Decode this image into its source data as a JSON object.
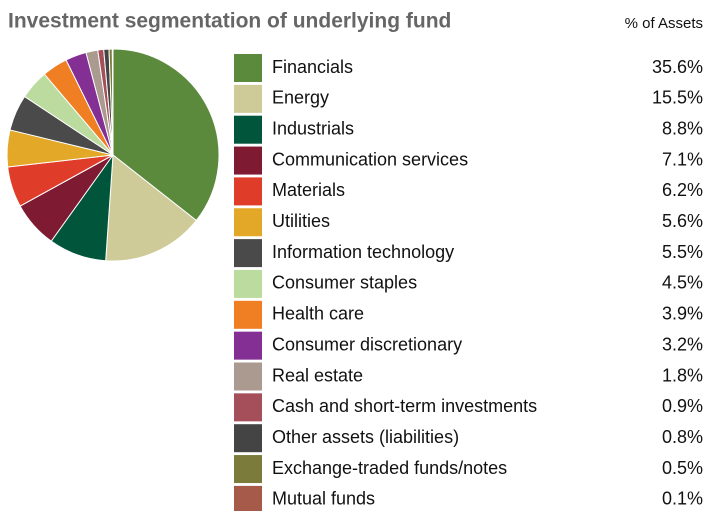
{
  "chart_data": {
    "type": "pie",
    "title": "Investment segmentation of underlying fund",
    "value_header": "% of Assets",
    "categories": [
      "Financials",
      "Energy",
      "Industrials",
      "Communication services",
      "Materials",
      "Utilities",
      "Information technology",
      "Consumer staples",
      "Health care",
      "Consumer discretionary",
      "Real estate",
      "Cash and short-term investments",
      "Other assets (liabilities)",
      "Exchange-traded funds/notes",
      "Mutual funds"
    ],
    "values": [
      35.6,
      15.5,
      8.8,
      7.1,
      6.2,
      5.6,
      5.5,
      4.5,
      3.9,
      3.2,
      1.8,
      0.9,
      0.8,
      0.5,
      0.1
    ],
    "value_labels": [
      "35.6%",
      "15.5%",
      "8.8%",
      "7.1%",
      "6.2%",
      "5.6%",
      "5.5%",
      "4.5%",
      "3.9%",
      "3.2%",
      "1.8%",
      "0.9%",
      "0.8%",
      "0.5%",
      "0.1%"
    ],
    "colors": [
      "#5b8a3c",
      "#cfcb98",
      "#00553a",
      "#7f1a33",
      "#e03c2a",
      "#e3a827",
      "#4a4a4a",
      "#bcdc9f",
      "#ef7f22",
      "#842f94",
      "#aa9a8f",
      "#a44f5a",
      "#444444",
      "#7b7b3c",
      "#a65a4a"
    ]
  }
}
